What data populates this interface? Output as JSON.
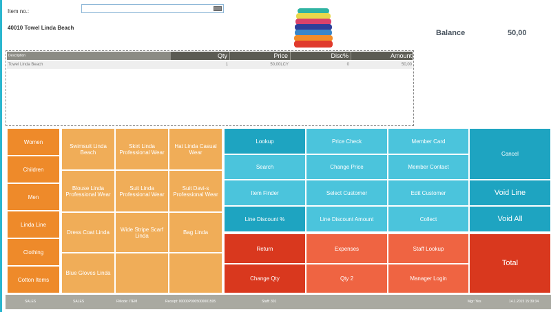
{
  "item": {
    "label": "Item no.:",
    "value": "",
    "description": "40010 Towel Linda Beach"
  },
  "balance": {
    "label": "Balance",
    "value": "50,00"
  },
  "grid": {
    "columns": [
      "Description",
      "Qty",
      "Price",
      "Disc%",
      "Amount"
    ],
    "rows": [
      {
        "description": "Towel Linda Beach",
        "qty": "1",
        "price": "50,00LCY",
        "disc": "0",
        "amount": "50,00"
      }
    ]
  },
  "categories": [
    "Women",
    "Children",
    "Men",
    "Linda Line",
    "Clothing",
    "Cotton Items"
  ],
  "products": [
    "Swimsuit Linda Beach",
    "Skirt Linda Professional Wear",
    "Hat Linda Casual Wear",
    "Blouse Linda Professional Wear",
    "Suit Linda Professional Wear",
    "Suit Davi-s Professional Wear",
    "Dress Coat Linda",
    "Wide Stripe Scarf Linda",
    "Bag Linda",
    "Blue Gloves Linda"
  ],
  "functions": {
    "lookup": "Lookup",
    "price_check": "Price Check",
    "member_card": "Member Card",
    "cancel": "Cancel",
    "search": "Search",
    "change_price": "Change Price",
    "member_contact": "Member Contact",
    "item_finder": "Item Finder",
    "select_customer": "Select Customer",
    "edit_customer": "Edit Customer",
    "void_line": "Void Line",
    "line_discount_pct": "Line Discount %",
    "line_discount_amount": "Line Discount Amount",
    "collect": "Collect",
    "void_all": "Void All",
    "return": "Return",
    "expenses": "Expenses",
    "staff_lookup": "Staff Lookup",
    "total": "Total",
    "change_qty": "Change Qty",
    "qty2": "Qty 2",
    "manager_login": "Manager Login"
  },
  "status": {
    "s1": "SALES",
    "s2": "SALES",
    "mode": "FMode: ITEM",
    "receipt": "Receipt: 00000P0005000001595",
    "staff": "Staff: 301",
    "mgr": "Mgr: Yes",
    "datetime": "14.1.2015 15:39:34"
  },
  "colors": {
    "category": "#ee8a2a",
    "product": "#f0ad58",
    "function_dark": "#1ea4c1",
    "function_light": "#4bc4dc",
    "red_dark": "#d9381e",
    "red_light": "#ef6442"
  }
}
